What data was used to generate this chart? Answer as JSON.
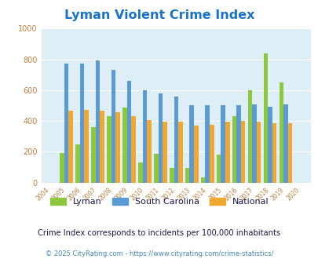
{
  "title": "Lyman Violent Crime Index",
  "years": [
    "2004",
    "2005",
    "2006",
    "2007",
    "2008",
    "2009",
    "2010",
    "2011",
    "2012",
    "2013",
    "2014",
    "2015",
    "2016",
    "2017",
    "2018",
    "2019",
    "2020"
  ],
  "lyman": [
    0,
    190,
    250,
    360,
    430,
    485,
    130,
    185,
    95,
    95,
    35,
    180,
    430,
    600,
    840,
    650,
    0
  ],
  "south_carolina": [
    0,
    770,
    770,
    795,
    730,
    660,
    600,
    580,
    560,
    500,
    500,
    500,
    500,
    505,
    490,
    505,
    0
  ],
  "national": [
    0,
    465,
    470,
    465,
    455,
    430,
    405,
    395,
    395,
    370,
    375,
    395,
    400,
    395,
    385,
    385,
    0
  ],
  "lyman_color": "#8dc63f",
  "sc_color": "#5b9bd5",
  "national_color": "#f0a830",
  "bg_color": "#ddeef6",
  "ylim": [
    0,
    1000
  ],
  "yticks": [
    0,
    200,
    400,
    600,
    800,
    1000
  ],
  "subtitle": "Crime Index corresponds to incidents per 100,000 inhabitants",
  "footer": "© 2025 CityRating.com - https://www.cityrating.com/crime-statistics/",
  "title_color": "#1a73c7",
  "subtitle_color": "#1a1a4e",
  "footer_color": "#4488bb",
  "legend_color": "#1a1a4e",
  "tick_color": "#c08040"
}
